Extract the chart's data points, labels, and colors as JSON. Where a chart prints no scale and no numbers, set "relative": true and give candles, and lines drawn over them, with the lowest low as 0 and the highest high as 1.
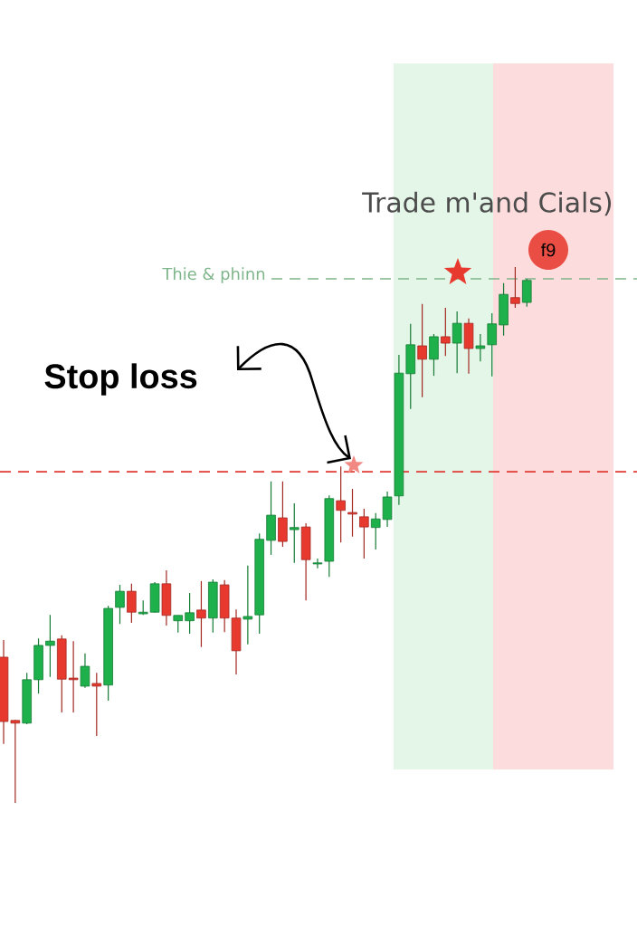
{
  "chart_data": {
    "type": "candlestick",
    "relative": true,
    "title": "Trade m'and Cials)",
    "categories": [
      null,
      null,
      null,
      null,
      null,
      null,
      null,
      null,
      null,
      null,
      null,
      null,
      null,
      null,
      null,
      null,
      null,
      null,
      null,
      null,
      null,
      null,
      null,
      null,
      null,
      null,
      null,
      null,
      null,
      null,
      null,
      null,
      null,
      null,
      null,
      null,
      null,
      null,
      null,
      null,
      null,
      null,
      null,
      null,
      null,
      null
    ],
    "ohlc": [
      [
        0.272,
        0.304,
        0.11,
        0.152
      ],
      [
        0.154,
        0.155,
        0.0,
        0.149
      ],
      [
        0.149,
        0.243,
        0.147,
        0.23
      ],
      [
        0.23,
        0.307,
        0.204,
        0.294
      ],
      [
        0.294,
        0.351,
        0.235,
        0.302
      ],
      [
        0.306,
        0.313,
        0.169,
        0.231
      ],
      [
        0.233,
        0.302,
        0.169,
        0.23
      ],
      [
        0.218,
        0.279,
        0.215,
        0.255
      ],
      [
        0.223,
        0.243,
        0.125,
        0.218
      ],
      [
        0.22,
        0.368,
        0.191,
        0.363
      ],
      [
        0.365,
        0.407,
        0.334,
        0.395
      ],
      [
        0.395,
        0.409,
        0.336,
        0.356
      ],
      [
        0.353,
        0.378,
        0.351,
        0.356
      ],
      [
        0.356,
        0.412,
        0.355,
        0.409
      ],
      [
        0.409,
        0.434,
        0.331,
        0.35
      ],
      [
        0.34,
        0.35,
        0.318,
        0.35
      ],
      [
        0.34,
        0.392,
        0.316,
        0.355
      ],
      [
        0.36,
        0.414,
        0.291,
        0.345
      ],
      [
        0.345,
        0.417,
        0.318,
        0.412
      ],
      [
        0.407,
        0.416,
        0.319,
        0.345
      ],
      [
        0.345,
        0.361,
        0.24,
        0.284
      ],
      [
        0.343,
        0.443,
        0.296,
        0.348
      ],
      [
        0.351,
        0.503,
        0.316,
        0.492
      ],
      [
        0.49,
        0.6,
        0.463,
        0.537
      ],
      [
        0.532,
        0.6,
        0.478,
        0.488
      ],
      [
        0.51,
        0.559,
        0.448,
        0.514
      ],
      [
        0.515,
        0.522,
        0.378,
        0.454
      ],
      [
        0.446,
        0.456,
        0.438,
        0.448
      ],
      [
        0.451,
        0.574,
        0.422,
        0.568
      ],
      [
        0.564,
        0.628,
        0.486,
        0.546
      ],
      [
        0.542,
        0.586,
        0.497,
        0.539
      ],
      [
        0.534,
        0.549,
        0.456,
        0.515
      ],
      [
        0.514,
        0.541,
        0.473,
        0.53
      ],
      [
        0.529,
        0.581,
        0.515,
        0.571
      ],
      [
        0.573,
        0.836,
        0.556,
        0.802
      ],
      [
        0.801,
        0.894,
        0.735,
        0.855
      ],
      [
        0.853,
        0.931,
        0.757,
        0.828
      ],
      [
        0.828,
        0.875,
        0.797,
        0.87
      ],
      [
        0.87,
        0.924,
        0.834,
        0.858
      ],
      [
        0.858,
        0.917,
        0.802,
        0.895
      ],
      [
        0.895,
        0.904,
        0.801,
        0.848
      ],
      [
        0.848,
        0.875,
        0.824,
        0.853
      ],
      [
        0.855,
        0.914,
        0.796,
        0.894
      ],
      [
        0.892,
        0.97,
        0.872,
        0.949
      ],
      [
        0.943,
        1.0,
        0.924,
        0.932
      ],
      [
        0.934,
        0.978,
        0.926,
        0.975
      ]
    ],
    "ref_lines": [
      {
        "axis": "y",
        "value": 0.618,
        "color": "#e03a32",
        "line_style": "dashed"
      },
      {
        "axis": "y",
        "value": 0.978,
        "label": "Thie & phinn",
        "color": "#7fb58a",
        "line_style": "dashed"
      }
    ],
    "annotations": [
      "Stop loss",
      "f9"
    ]
  }
}
